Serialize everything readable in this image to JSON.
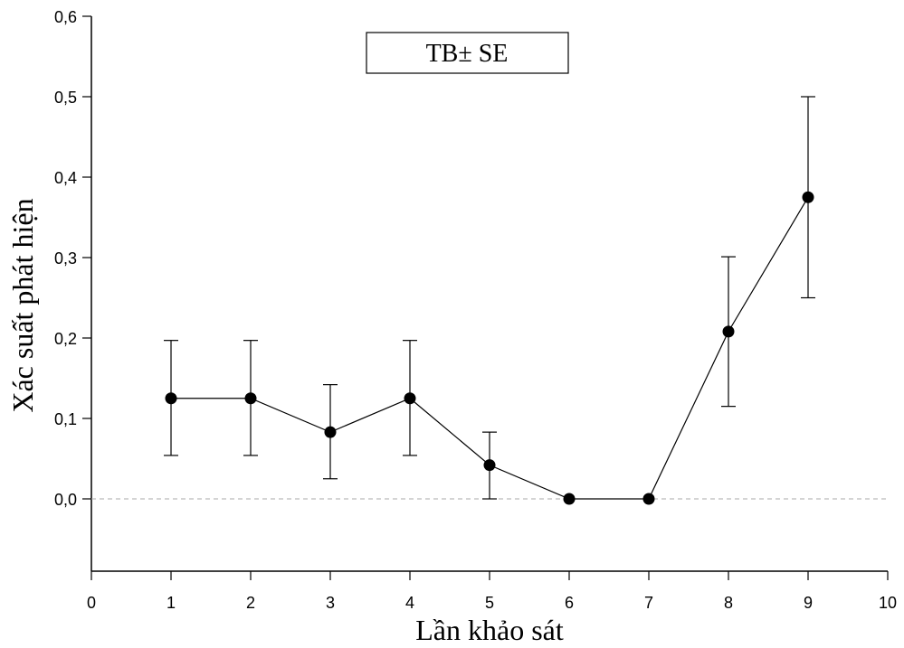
{
  "chart_data": {
    "type": "line",
    "title": "",
    "xlabel": "Lần khảo sát",
    "ylabel": "Xác suất phát hiện",
    "legend_label": "TB± SE",
    "legend_position": "top-center",
    "xlim": [
      0,
      10
    ],
    "ylim": [
      -0.09,
      0.6
    ],
    "x_ticks": [
      0,
      1,
      2,
      3,
      4,
      5,
      6,
      7,
      8,
      9,
      10
    ],
    "y_ticks": [
      0.0,
      0.1,
      0.2,
      0.3,
      0.4,
      0.5,
      0.6
    ],
    "y_tick_labels": [
      "0,0",
      "0,1",
      "0,2",
      "0,3",
      "0,4",
      "0,5",
      "0,6"
    ],
    "reference_line_y": 0,
    "grid": false,
    "series": [
      {
        "x": [
          1,
          2,
          3,
          4,
          5,
          6,
          7,
          8,
          9
        ],
        "values": [
          0.125,
          0.125,
          0.083,
          0.125,
          0.042,
          0.0,
          0.0,
          0.208,
          0.375
        ],
        "err_low": [
          0.054,
          0.054,
          0.025,
          0.054,
          0.0,
          0.0,
          0.0,
          0.115,
          0.25
        ],
        "err_high": [
          0.197,
          0.197,
          0.142,
          0.197,
          0.083,
          0.0,
          0.0,
          0.301,
          0.5
        ]
      }
    ]
  }
}
